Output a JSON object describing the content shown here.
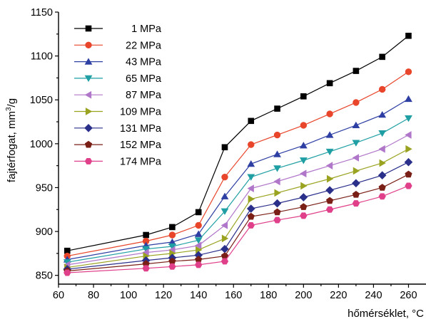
{
  "chart_data": {
    "type": "line",
    "xlabel": "hőmérséklet, °C",
    "ylabel_main": "fajtérfogat, mm",
    "ylabel_sup": "3",
    "ylabel_tail": "/g",
    "xlim": [
      60,
      270
    ],
    "ylim": [
      840,
      1150
    ],
    "x_ticks": [
      60,
      80,
      100,
      120,
      140,
      160,
      180,
      200,
      220,
      240,
      260
    ],
    "y_ticks": [
      850,
      900,
      950,
      1000,
      1050,
      1100,
      1150
    ],
    "grid": false,
    "legend_position": "top-left",
    "x": [
      65,
      110,
      125,
      140,
      155,
      170,
      185,
      200,
      215,
      230,
      245,
      260
    ],
    "series": [
      {
        "name": "1 MPa",
        "color": "#000000",
        "marker": "square",
        "values": [
          878,
          896,
          905,
          922,
          996,
          1026,
          1040,
          1054,
          1069,
          1083,
          1099,
          1123
        ]
      },
      {
        "name": "22 MPa",
        "color": "#e8452a",
        "marker": "circle",
        "values": [
          872,
          889,
          896,
          907,
          962,
          999,
          1010,
          1021,
          1034,
          1047,
          1062,
          1082
        ]
      },
      {
        "name": "43 MPa",
        "color": "#2e3fa3",
        "marker": "triangle-up",
        "values": [
          868,
          884,
          888,
          897,
          940,
          977,
          988,
          998,
          1010,
          1021,
          1033,
          1051
        ]
      },
      {
        "name": "65 MPa",
        "color": "#1f9fa3",
        "marker": "triangle-down",
        "values": [
          865,
          880,
          883,
          890,
          923,
          962,
          972,
          981,
          991,
          1001,
          1012,
          1029
        ]
      },
      {
        "name": "87 MPa",
        "color": "#b076c9",
        "marker": "triangle-left",
        "values": [
          862,
          876,
          879,
          884,
          907,
          949,
          957,
          966,
          975,
          984,
          994,
          1010
        ]
      },
      {
        "name": "109 MPa",
        "color": "#9aa320",
        "marker": "triangle-right",
        "values": [
          859,
          872,
          875,
          879,
          892,
          937,
          944,
          952,
          960,
          969,
          978,
          994
        ]
      },
      {
        "name": "131 MPa",
        "color": "#2a2f8a",
        "marker": "diamond",
        "values": [
          857,
          867,
          870,
          873,
          880,
          926,
          932,
          939,
          947,
          955,
          964,
          979
        ]
      },
      {
        "name": "152 MPa",
        "color": "#7a1f16",
        "marker": "pentagon",
        "values": [
          855,
          863,
          866,
          868,
          872,
          917,
          922,
          928,
          935,
          942,
          950,
          965
        ]
      },
      {
        "name": "174 MPa",
        "color": "#e0408a",
        "marker": "hexagon",
        "values": [
          853,
          858,
          860,
          862,
          866,
          907,
          913,
          918,
          925,
          932,
          940,
          952
        ]
      }
    ]
  }
}
